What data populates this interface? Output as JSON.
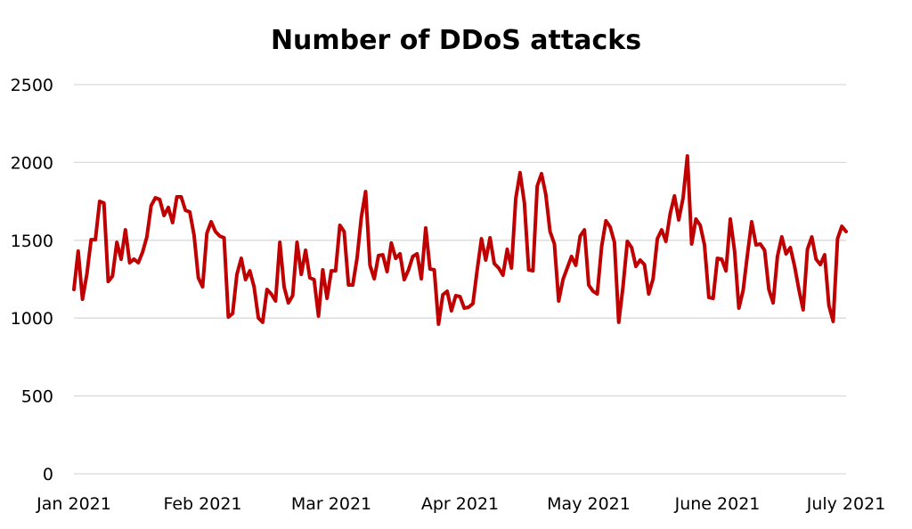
{
  "chart_data": {
    "type": "line",
    "title": "Number of DDoS attacks",
    "xlabel": "",
    "ylabel": "",
    "ylim": [
      0,
      2500
    ],
    "yticks": [
      0,
      500,
      1000,
      1500,
      2000,
      2500
    ],
    "xtick_labels": [
      "Jan 2021",
      "Feb 2021",
      "Mar 2021",
      "Apr 2021",
      "May 2021",
      "June 2021",
      "July 2021"
    ],
    "x_range": [
      "Jan 2021",
      "July 2021"
    ],
    "grid": "horizontal",
    "legend": "none",
    "series": [
      {
        "name": "Number of DDoS attacks",
        "color": "#c00000",
        "values": [
          1184,
          1430,
          1121,
          1281,
          1504,
          1504,
          1750,
          1739,
          1235,
          1270,
          1487,
          1379,
          1567,
          1356,
          1379,
          1356,
          1424,
          1522,
          1722,
          1773,
          1762,
          1659,
          1711,
          1613,
          1779,
          1779,
          1693,
          1682,
          1533,
          1259,
          1201,
          1545,
          1619,
          1556,
          1527,
          1516,
          1007,
          1030,
          1281,
          1384,
          1247,
          1304,
          1201,
          1001,
          973,
          1184,
          1155,
          1110,
          1487,
          1201,
          1098,
          1144,
          1487,
          1281,
          1436,
          1259,
          1247,
          1013,
          1310,
          1127,
          1304,
          1304,
          1596,
          1556,
          1213,
          1213,
          1384,
          1648,
          1813,
          1339,
          1253,
          1402,
          1407,
          1299,
          1482,
          1384,
          1413,
          1247,
          1310,
          1396,
          1413,
          1253,
          1579,
          1316,
          1310,
          961,
          1150,
          1173,
          1047,
          1144,
          1138,
          1064,
          1070,
          1093,
          1310,
          1510,
          1373,
          1516,
          1350,
          1322,
          1276,
          1442,
          1322,
          1768,
          1934,
          1739,
          1310,
          1304,
          1848,
          1928,
          1796,
          1556,
          1476,
          1110,
          1247,
          1322,
          1396,
          1339,
          1527,
          1567,
          1213,
          1173,
          1155,
          1459,
          1625,
          1585,
          1487,
          973,
          1201,
          1493,
          1453,
          1333,
          1373,
          1344,
          1155,
          1253,
          1510,
          1567,
          1493,
          1671,
          1785,
          1631,
          1773,
          2042,
          1476,
          1636,
          1596,
          1470,
          1133,
          1127,
          1384,
          1379,
          1304,
          1636,
          1430,
          1064,
          1178,
          1407,
          1619,
          1470,
          1476,
          1436,
          1184,
          1098,
          1396,
          1522,
          1413,
          1453,
          1333,
          1184,
          1053,
          1442,
          1522,
          1379,
          1344,
          1407,
          1081,
          979,
          1510,
          1590,
          1556
        ]
      }
    ]
  }
}
